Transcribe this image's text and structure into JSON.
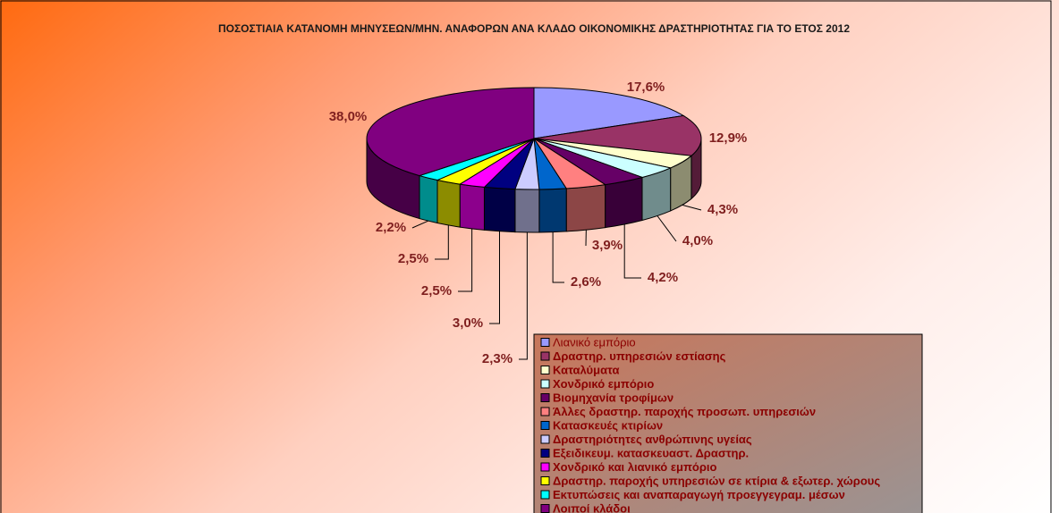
{
  "chart_data": {
    "type": "pie",
    "title": "ΠΟΣΟΣΤΙΑΙΑ ΚΑΤΑΝΟΜΗ ΜΗΝΥΣΕΩΝ/ΜΗΝ. ΑΝΑΦΟΡΩΝ ΑΝΑ ΚΛΑΔΟ ΟΙΚΟΝΟΜΙΚΗΣ ΔΡΑΣΤΗΡΙΟΤΗΤΑΣ ΓΙΑ ΤΟ ΕΤΟΣ 2012",
    "categories": [
      "Λιανικό εμπόριο",
      "Δραστηρ. υπηρεσιών εστίασης",
      "Καταλύματα",
      "Χονδρικό εμπόριο",
      "Βιομηχανία τροφίμων",
      "Άλλες δραστηρ. παροχής προσωπ. υπηρεσιών",
      "Κατασκευές κτιρίων",
      "Δραστηριότητες ανθρώπινης υγείας",
      "Εξειδικευμ. κατασκευαστ. Δραστηρ.",
      "Χονδρικό και λιανικό εμπόριο",
      "Δραστηρ. παροχής υπηρεσιών σε κτίρια & εξωτερ. χώρους",
      "Εκτυπώσεις και αναπαραγωγή προεγγεγραμ. μέσων",
      "Λοιποί κλάδοι"
    ],
    "values": [
      17.6,
      12.9,
      4.3,
      4.0,
      4.2,
      3.9,
      2.6,
      2.3,
      3.0,
      2.5,
      2.5,
      2.2,
      38.0
    ],
    "value_labels": [
      "17,6%",
      "12,9%",
      "4,3%",
      "4,0%",
      "4,2%",
      "3,9%",
      "2,6%",
      "2,3%",
      "3,0%",
      "2,5%",
      "2,5%",
      "2,2%",
      "38,0%"
    ],
    "colors": [
      "#9999ff",
      "#993366",
      "#ffffcc",
      "#ccffff",
      "#660066",
      "#ff8080",
      "#0066cc",
      "#ccccff",
      "#000080",
      "#ff00ff",
      "#ffff00",
      "#00ffff",
      "#800080"
    ],
    "legend": "bottom-right"
  }
}
